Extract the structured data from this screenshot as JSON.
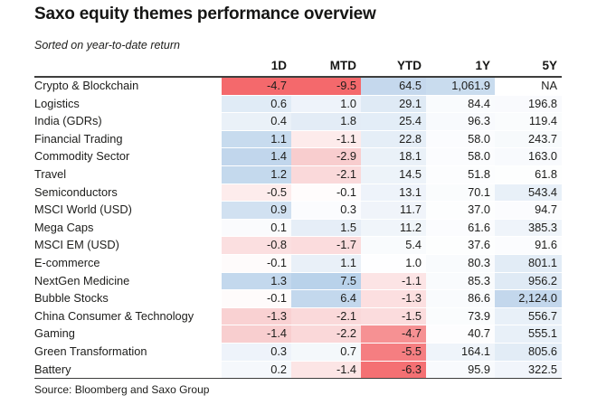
{
  "title": "Saxo equity themes performance overview",
  "subtitle": "Sorted on year-to-date return",
  "source": "Source: Bloomberg and Saxo Group",
  "colors": {
    "negative_max": "#f4696c",
    "positive_max": "#b9d2ea",
    "text": "#1d1d1b",
    "rule": "#3e3e3d",
    "background": "#ffffff"
  },
  "table": {
    "columns": [
      "1D",
      "MTD",
      "YTD",
      "1Y",
      "5Y"
    ],
    "rows": [
      {
        "label": "Crypto & Blockchain",
        "values": [
          "-4.7",
          "-9.5",
          "64.5",
          "1,061.9",
          "NA"
        ],
        "colors": [
          "#f4696c",
          "#f4696c",
          "#c5d8ed",
          "#c9dcee",
          "#ffffff"
        ]
      },
      {
        "label": "Logistics",
        "values": [
          "0.6",
          "1.0",
          "29.1",
          "84.4",
          "196.8"
        ],
        "colors": [
          "#e0ebf6",
          "#eef3fa",
          "#dfeaf5",
          "#f9fbfd",
          "#f9fafd"
        ]
      },
      {
        "label": "India (GDRs)",
        "values": [
          "0.4",
          "1.8",
          "25.4",
          "96.3",
          "119.4"
        ],
        "colors": [
          "#eaf1f8",
          "#e3ecf6",
          "#e3edf7",
          "#f8fafd",
          "#fafcfd"
        ]
      },
      {
        "label": "Financial Trading",
        "values": [
          "1.1",
          "-1.1",
          "22.8",
          "58.0",
          "243.7"
        ],
        "colors": [
          "#c7dbee",
          "#fdebeb",
          "#e5eef7",
          "#fbfcfe",
          "#f7fafc"
        ]
      },
      {
        "label": "Commodity Sector",
        "values": [
          "1.4",
          "-2.9",
          "18.1",
          "58.0",
          "163.0"
        ],
        "colors": [
          "#c1d6ec",
          "#f8cdce",
          "#eaf1f8",
          "#fbfcfe",
          "#f8fafd"
        ]
      },
      {
        "label": "Travel",
        "values": [
          "1.2",
          "-2.1",
          "14.5",
          "51.8",
          "61.8"
        ],
        "colors": [
          "#c4d9ed",
          "#fad9da",
          "#edf3f9",
          "#fcfdfe",
          "#fdfefe"
        ]
      },
      {
        "label": "Semiconductors",
        "values": [
          "-0.5",
          "-0.1",
          "13.1",
          "70.1",
          "543.4"
        ],
        "colors": [
          "#fdecec",
          "#fffcfc",
          "#eef3fa",
          "#fafcfd",
          "#e8f0f8"
        ]
      },
      {
        "label": "MSCI World (USD)",
        "values": [
          "0.9",
          "0.3",
          "11.7",
          "37.0",
          "94.7"
        ],
        "colors": [
          "#d1e1f1",
          "#fbfcfe",
          "#f0f4fa",
          "#fdfefe",
          "#fbfcfe"
        ]
      },
      {
        "label": "Mega Caps",
        "values": [
          "0.1",
          "1.5",
          "11.2",
          "61.6",
          "385.3"
        ],
        "colors": [
          "#fafbfd",
          "#e6eef7",
          "#f0f5fa",
          "#fbfcfe",
          "#eff4fa"
        ]
      },
      {
        "label": "MSCI EM (USD)",
        "values": [
          "-0.8",
          "-1.7",
          "5.4",
          "37.6",
          "91.6"
        ],
        "colors": [
          "#fbdfe0",
          "#fbdcdd",
          "#f9fbfd",
          "#fdfefe",
          "#fbfcfe"
        ]
      },
      {
        "label": "E-commerce",
        "values": [
          "-0.1",
          "1.1",
          "1.0",
          "80.3",
          "801.1"
        ],
        "colors": [
          "#fefbfb",
          "#e9f0f8",
          "#fefeff",
          "#f9fbfd",
          "#e2ecf6"
        ]
      },
      {
        "label": "NextGen Medicine",
        "values": [
          "1.3",
          "7.5",
          "-1.1",
          "85.3",
          "956.2"
        ],
        "colors": [
          "#c3d8ed",
          "#b9d2ea",
          "#fce4e5",
          "#f9fbfd",
          "#dfeaf5"
        ]
      },
      {
        "label": "Bubble Stocks",
        "values": [
          "-0.1",
          "6.4",
          "-1.3",
          "86.6",
          "2,124.0"
        ],
        "colors": [
          "#fefbfb",
          "#c3d8ed",
          "#fcdfe0",
          "#f9fbfd",
          "#c3d7ec"
        ]
      },
      {
        "label": "China Consumer & Technology",
        "values": [
          "-1.3",
          "-2.1",
          "-1.5",
          "73.9",
          "556.7"
        ],
        "colors": [
          "#f9d1d2",
          "#fad9da",
          "#fbdcdd",
          "#fafcfd",
          "#e8f0f8"
        ]
      },
      {
        "label": "Gaming",
        "values": [
          "-1.4",
          "-2.2",
          "-4.7",
          "40.7",
          "555.1"
        ],
        "colors": [
          "#f8cecf",
          "#fad8d9",
          "#f69193",
          "#fdfdfe",
          "#e8f0f8"
        ]
      },
      {
        "label": "Green Transformation",
        "values": [
          "0.3",
          "0.7",
          "-5.5",
          "164.1",
          "805.6"
        ],
        "colors": [
          "#eef3fa",
          "#f4f8fb",
          "#f57e81",
          "#eff4fa",
          "#e2ecf6"
        ]
      },
      {
        "label": "Battery",
        "values": [
          "0.2",
          "-1.4",
          "-6.3",
          "95.9",
          "322.5"
        ],
        "colors": [
          "#f5f8fc",
          "#fce5e5",
          "#f47073",
          "#f8fafd",
          "#f1f5fb"
        ]
      }
    ]
  },
  "chart_data": {
    "type": "heatmap",
    "title": "Saxo equity themes performance overview",
    "subtitle": "Sorted on year-to-date return",
    "columns": [
      "1D",
      "MTD",
      "YTD",
      "1Y",
      "5Y"
    ],
    "rows": [
      "Crypto & Blockchain",
      "Logistics",
      "India (GDRs)",
      "Financial Trading",
      "Commodity Sector",
      "Travel",
      "Semiconductors",
      "MSCI World (USD)",
      "Mega Caps",
      "MSCI EM (USD)",
      "E-commerce",
      "NextGen Medicine",
      "Bubble Stocks",
      "China Consumer & Technology",
      "Gaming",
      "Green Transformation",
      "Battery"
    ],
    "values": [
      [
        -4.7,
        -9.5,
        64.5,
        1061.9,
        null
      ],
      [
        0.6,
        1.0,
        29.1,
        84.4,
        196.8
      ],
      [
        0.4,
        1.8,
        25.4,
        96.3,
        119.4
      ],
      [
        1.1,
        -1.1,
        22.8,
        58.0,
        243.7
      ],
      [
        1.4,
        -2.9,
        18.1,
        58.0,
        163.0
      ],
      [
        1.2,
        -2.1,
        14.5,
        51.8,
        61.8
      ],
      [
        -0.5,
        -0.1,
        13.1,
        70.1,
        543.4
      ],
      [
        0.9,
        0.3,
        11.7,
        37.0,
        94.7
      ],
      [
        0.1,
        1.5,
        11.2,
        61.6,
        385.3
      ],
      [
        -0.8,
        -1.7,
        5.4,
        37.6,
        91.6
      ],
      [
        -0.1,
        1.1,
        1.0,
        80.3,
        801.1
      ],
      [
        1.3,
        7.5,
        -1.1,
        85.3,
        956.2
      ],
      [
        -0.1,
        6.4,
        -1.3,
        86.6,
        2124.0
      ],
      [
        -1.3,
        -2.1,
        -1.5,
        73.9,
        556.7
      ],
      [
        -1.4,
        -2.2,
        -4.7,
        40.7,
        555.1
      ],
      [
        0.3,
        0.7,
        -5.5,
        164.1,
        805.6
      ],
      [
        0.2,
        -1.4,
        -6.3,
        95.9,
        322.5
      ]
    ],
    "na_label": "NA",
    "source": "Source: Bloomberg and Saxo Group",
    "color_scale": "diverging red (negative) to light blue (positive), intensity normalized per column",
    "legend": "none",
    "grid": "off"
  }
}
